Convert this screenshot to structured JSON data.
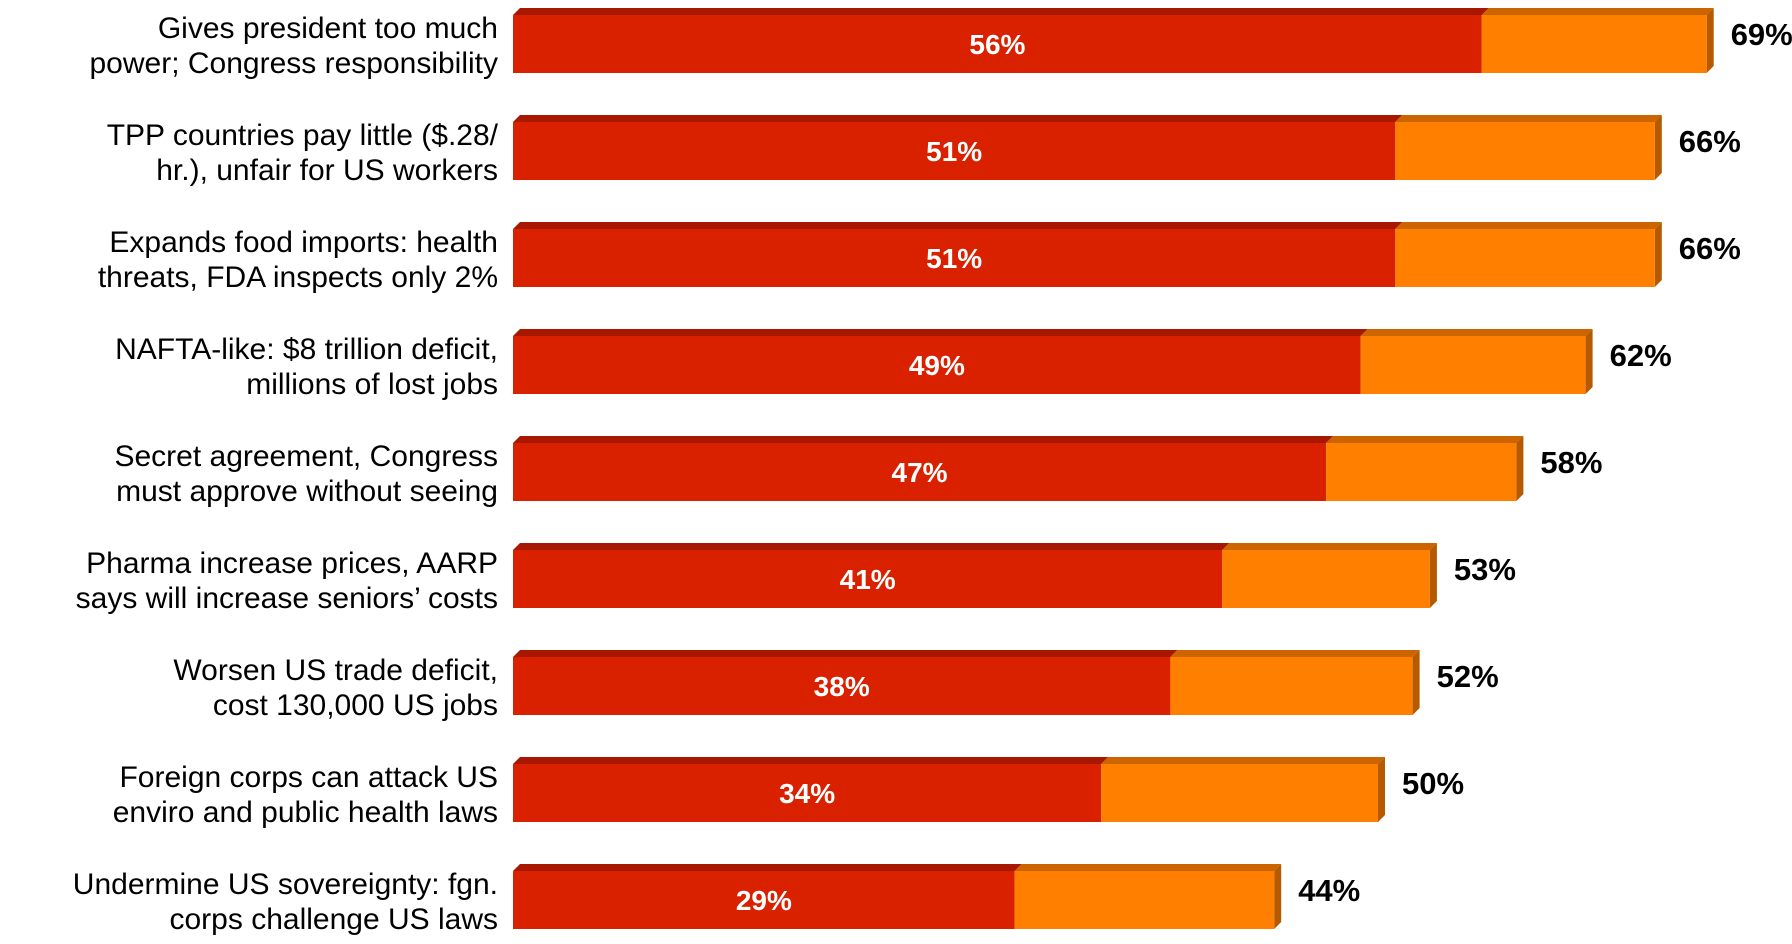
{
  "chart_data": {
    "type": "bar",
    "orientation": "horizontal",
    "stacked": true,
    "categories": [
      [
        "Gives president too much",
        "power; Congress responsibility"
      ],
      [
        "TPP countries pay little ($.28/",
        "hr.), unfair for US workers"
      ],
      [
        "Expands food imports: health",
        "threats, FDA inspects only 2%"
      ],
      [
        "NAFTA-like: $8 trillion deficit,",
        "millions of lost jobs"
      ],
      [
        "Secret agreement, Congress",
        "must approve without seeing"
      ],
      [
        "Pharma increase prices, AARP",
        "says will increase seniors’ costs"
      ],
      [
        "Worsen US trade deficit,",
        "cost 130,000 US jobs"
      ],
      [
        "Foreign corps can attack US",
        "enviro and public health laws"
      ],
      [
        "Undermine US sovereignty: fgn.",
        "corps challenge US laws"
      ]
    ],
    "inner_values": [
      56,
      51,
      51,
      49,
      47,
      41,
      38,
      34,
      29
    ],
    "total_values": [
      69,
      66,
      66,
      62,
      58,
      53,
      52,
      50,
      44
    ],
    "inner_labels": [
      "56%",
      "51%",
      "51%",
      "49%",
      "47%",
      "41%",
      "38%",
      "34%",
      "29%"
    ],
    "total_labels": [
      "69%",
      "66%",
      "66%",
      "62%",
      "58%",
      "53%",
      "52%",
      "50%",
      "44%"
    ],
    "colors": {
      "inner": "#d92100",
      "inner_top": "#a81800",
      "inner_side": "#8e1400",
      "outer": "#ff7f00",
      "outer_top": "#cc6400",
      "outer_side": "#b55a00"
    },
    "legend": "none",
    "grid": false
  }
}
